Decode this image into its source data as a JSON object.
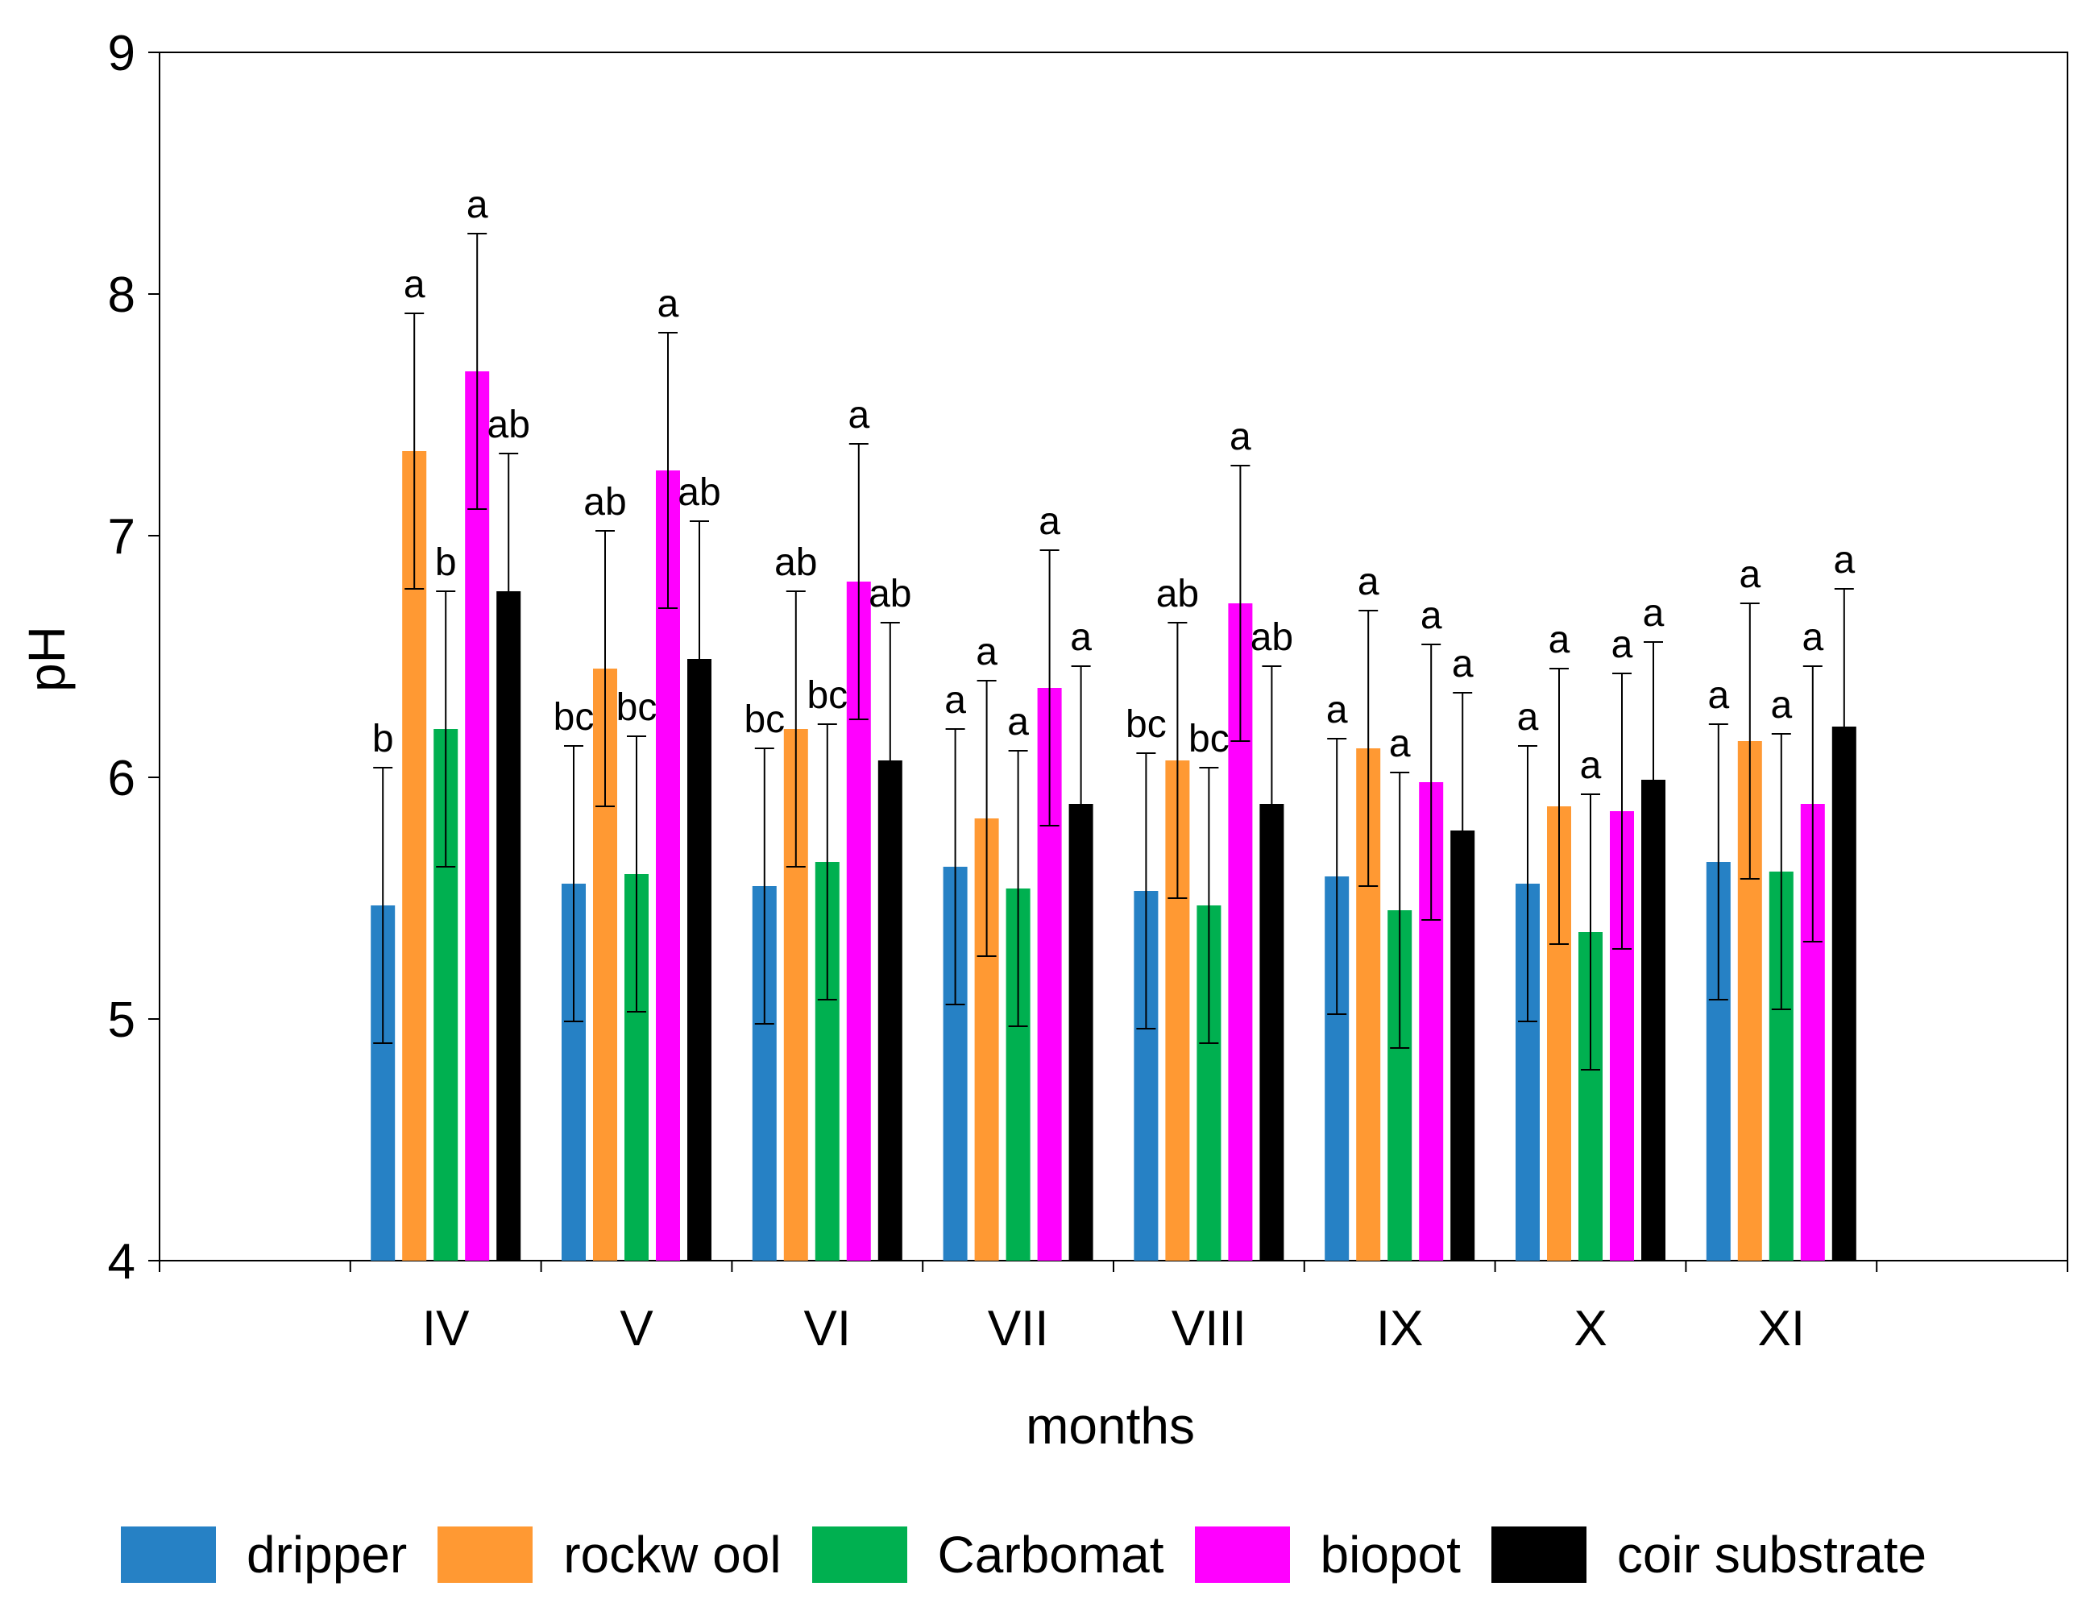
{
  "chart_data": {
    "type": "bar",
    "title": "",
    "xlabel": "months",
    "ylabel": "pH",
    "ylim": [
      4,
      9
    ],
    "yticks": [
      4,
      5,
      6,
      7,
      8,
      9
    ],
    "yticks_labels": [
      "4",
      "5",
      "6",
      "7",
      "8",
      "9"
    ],
    "categories": [
      "IV",
      "V",
      "VI",
      "VII",
      "VIII",
      "IX",
      "X",
      "XI"
    ],
    "series": [
      {
        "name": "dripper",
        "color": "#2681c5",
        "values": [
          5.47,
          5.56,
          5.55,
          5.63,
          5.53,
          5.59,
          5.56,
          5.65
        ],
        "errors": [
          0.57,
          0.57,
          0.57,
          0.57,
          0.57,
          0.57,
          0.57,
          0.57
        ],
        "letters": [
          "b",
          "bc",
          "bc",
          "a",
          "bc",
          "a",
          "a",
          "a"
        ]
      },
      {
        "name": "rockw ool",
        "color": "#ff9933",
        "values": [
          7.35,
          6.45,
          6.2,
          5.83,
          6.07,
          6.12,
          5.88,
          6.15
        ],
        "errors": [
          0.57,
          0.57,
          0.57,
          0.57,
          0.57,
          0.57,
          0.57,
          0.57
        ],
        "letters": [
          "a",
          "ab",
          "ab",
          "a",
          "ab",
          "a",
          "a",
          "a"
        ]
      },
      {
        "name": "Carbomat",
        "color": "#00b050",
        "values": [
          6.2,
          5.6,
          5.65,
          5.54,
          5.47,
          5.45,
          5.36,
          5.61
        ],
        "errors": [
          0.57,
          0.57,
          0.57,
          0.57,
          0.57,
          0.57,
          0.57,
          0.57
        ],
        "letters": [
          "b",
          "bc",
          "bc",
          "a",
          "bc",
          "a",
          "a",
          "a"
        ]
      },
      {
        "name": "biopot",
        "color": "#ff00ff",
        "values": [
          7.68,
          7.27,
          6.81,
          6.37,
          6.72,
          5.98,
          5.86,
          5.89
        ],
        "errors": [
          0.57,
          0.57,
          0.57,
          0.57,
          0.57,
          0.57,
          0.57,
          0.57
        ],
        "letters": [
          "a",
          "a",
          "a",
          "a",
          "a",
          "a",
          "a",
          "a"
        ]
      },
      {
        "name": "coir substrate",
        "color": "#000000",
        "values": [
          6.77,
          6.49,
          6.07,
          5.89,
          5.89,
          5.78,
          5.99,
          6.21
        ],
        "errors": [
          0.57,
          0.57,
          0.57,
          0.57,
          0.57,
          0.57,
          0.57,
          0.57
        ],
        "letters": [
          "ab",
          "ab",
          "ab",
          "a",
          "ab",
          "a",
          "a",
          "a"
        ]
      }
    ],
    "legend_position": "bottom"
  }
}
